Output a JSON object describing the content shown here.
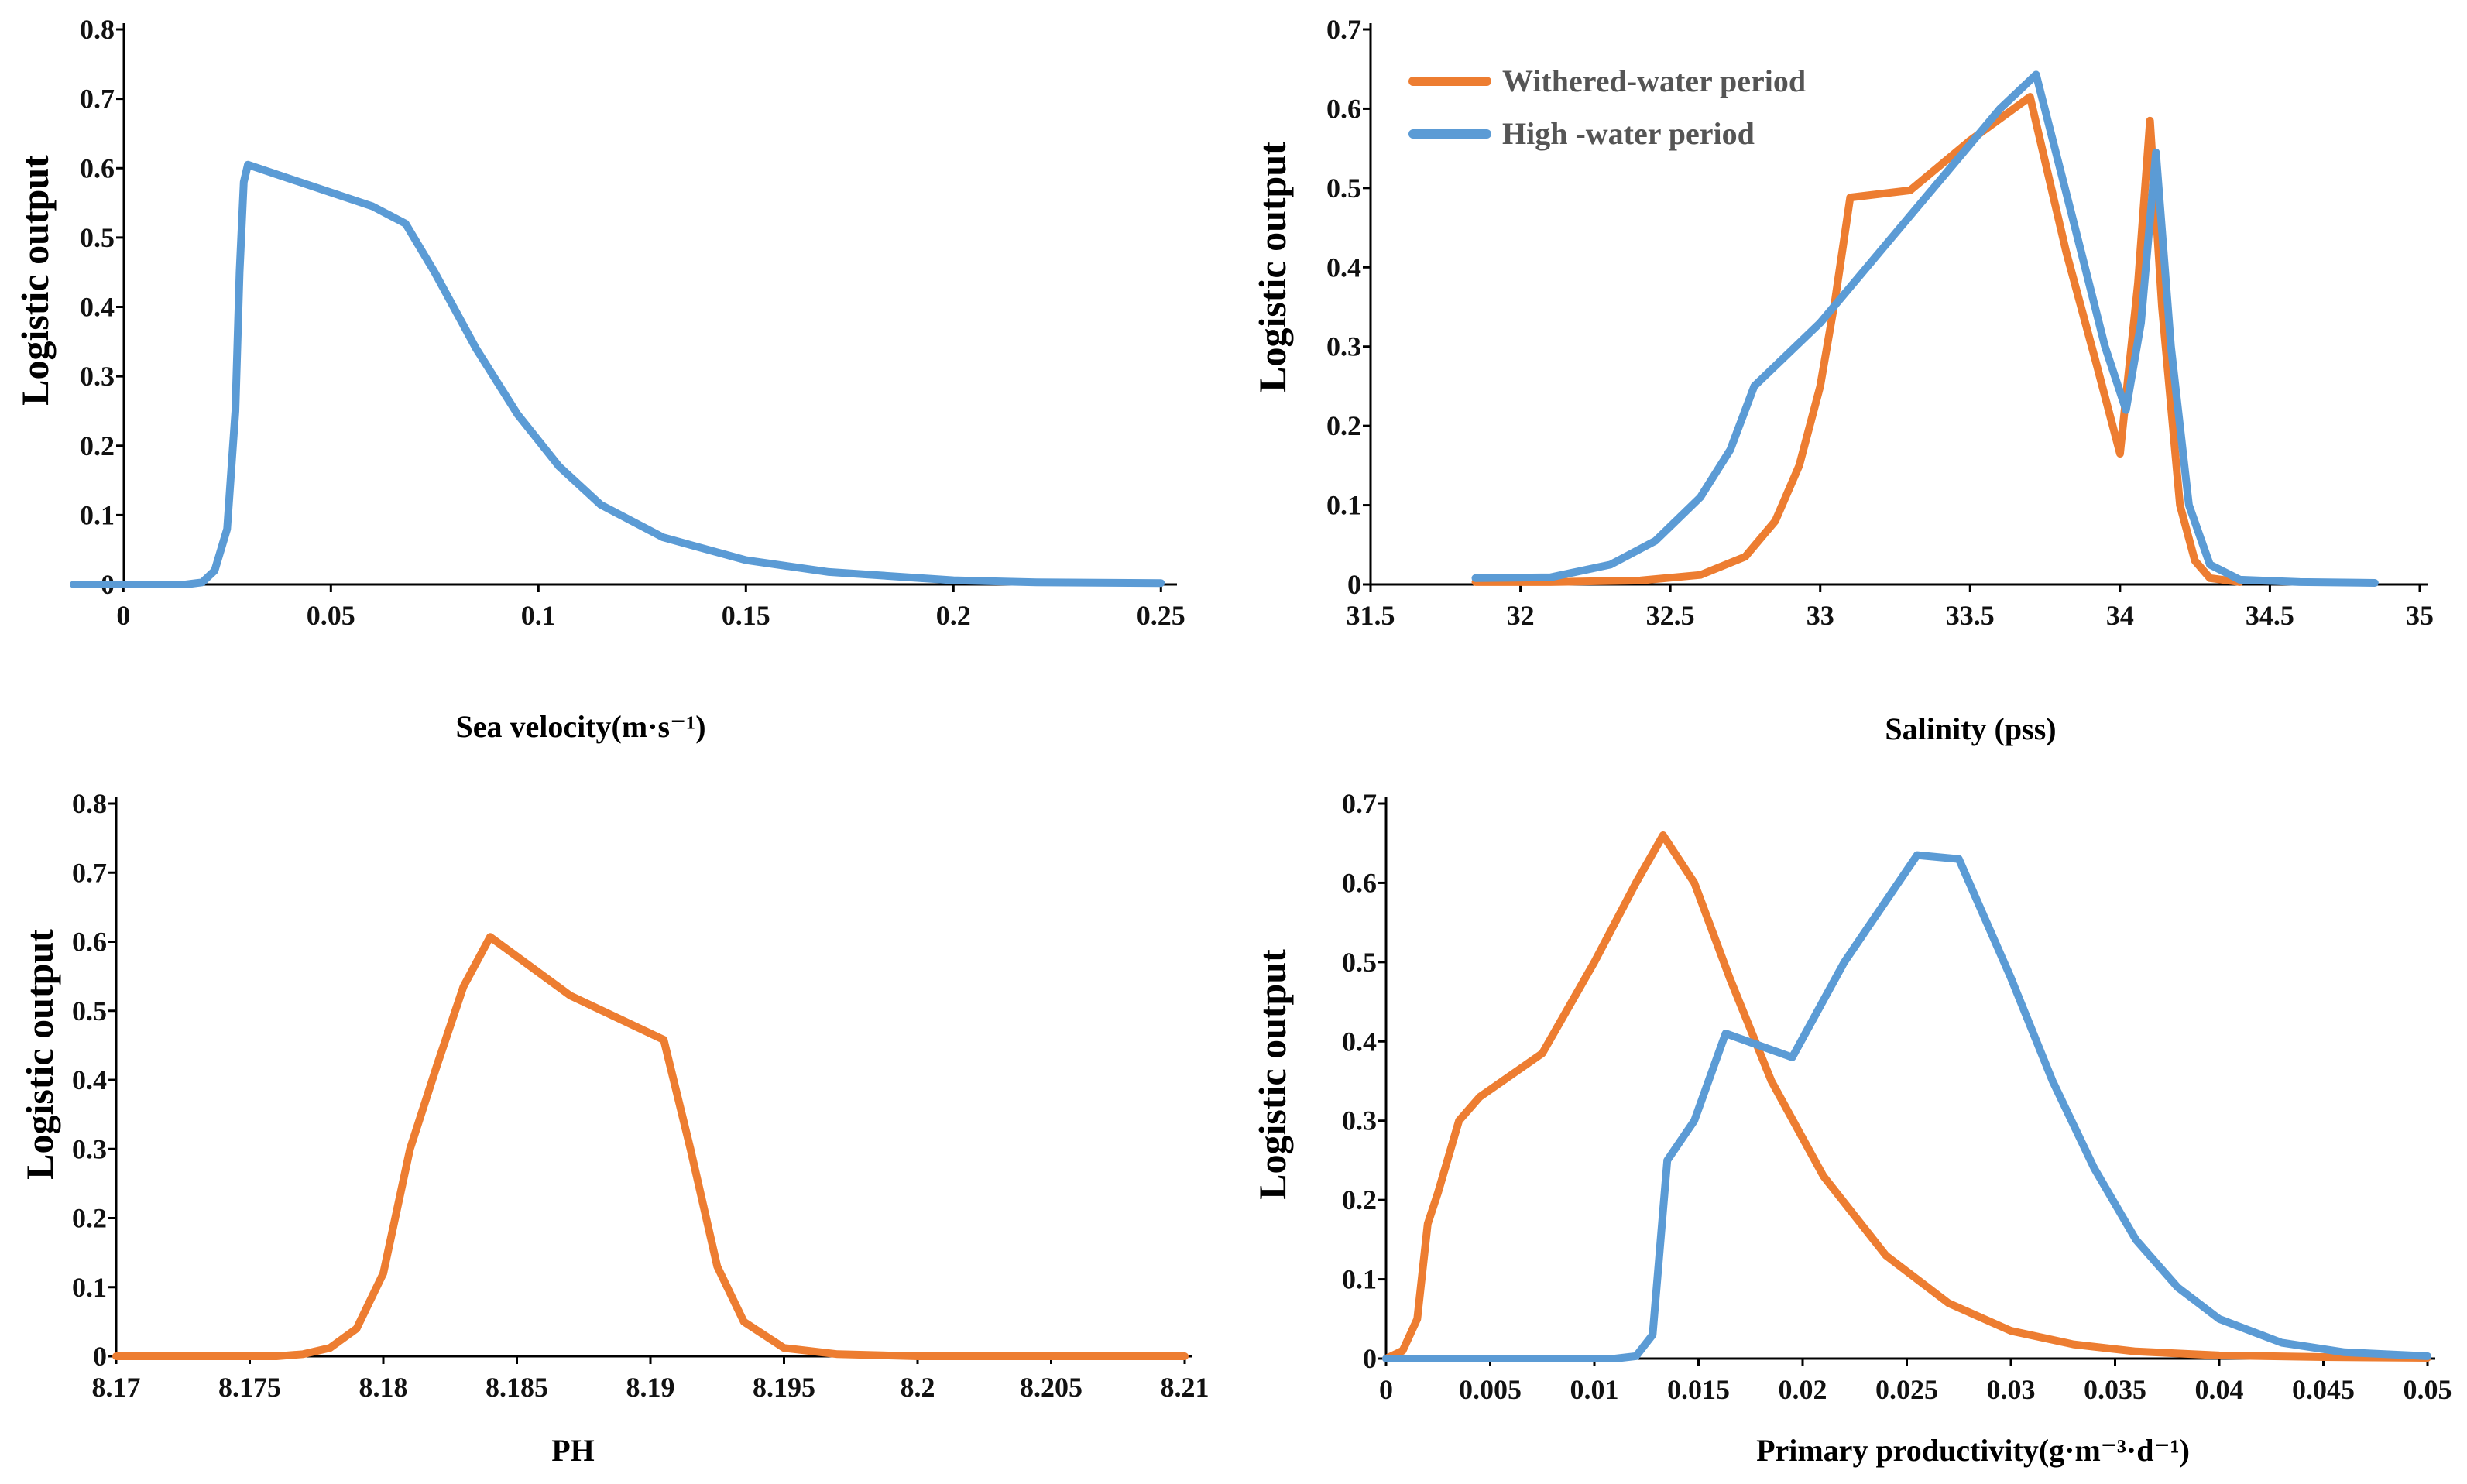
{
  "series_names": [
    "Withered-water period",
    "High -water period"
  ],
  "colors": {
    "withered": "#ED7D31",
    "high": "#5B9BD5"
  },
  "chart_data": [
    {
      "id": "panel-a",
      "type": "line",
      "title": "",
      "xlabel": "Sea velocity(m·s⁻¹)",
      "ylabel": "Logistic output",
      "xlim": [
        -0.012,
        0.252
      ],
      "ylim": [
        0,
        0.8
      ],
      "xticks": [
        0,
        0.05,
        0.1,
        0.15,
        0.2,
        0.25
      ],
      "yticks": [
        0,
        0.1,
        0.2,
        0.3,
        0.4,
        0.5,
        0.6,
        0.7,
        0.8
      ],
      "legend": null,
      "series": [
        {
          "name": "High -water period",
          "color": "#5B9BD5",
          "points": [
            [
              -0.012,
              0.0
            ],
            [
              0.0,
              0.0
            ],
            [
              0.015,
              0.0
            ],
            [
              0.019,
              0.003
            ],
            [
              0.022,
              0.02
            ],
            [
              0.025,
              0.08
            ],
            [
              0.027,
              0.25
            ],
            [
              0.028,
              0.45
            ],
            [
              0.029,
              0.58
            ],
            [
              0.03,
              0.605
            ],
            [
              0.04,
              0.585
            ],
            [
              0.05,
              0.565
            ],
            [
              0.06,
              0.545
            ],
            [
              0.068,
              0.52
            ],
            [
              0.075,
              0.45
            ],
            [
              0.085,
              0.34
            ],
            [
              0.095,
              0.245
            ],
            [
              0.105,
              0.17
            ],
            [
              0.115,
              0.115
            ],
            [
              0.13,
              0.068
            ],
            [
              0.15,
              0.035
            ],
            [
              0.17,
              0.018
            ],
            [
              0.2,
              0.006
            ],
            [
              0.22,
              0.003
            ],
            [
              0.25,
              0.002
            ]
          ]
        }
      ]
    },
    {
      "id": "panel-b",
      "type": "line",
      "title": "",
      "xlabel": "Salinity (pss)",
      "ylabel": "Logistic output",
      "xlim": [
        31.5,
        35.0
      ],
      "ylim": [
        0,
        0.7
      ],
      "xticks": [
        31.5,
        32,
        32.5,
        33,
        33.5,
        34,
        34.5,
        35
      ],
      "yticks": [
        0,
        0.1,
        0.2,
        0.3,
        0.4,
        0.5,
        0.6,
        0.7
      ],
      "legend": "top-left",
      "series": [
        {
          "name": "Withered-water period",
          "color": "#ED7D31",
          "points": [
            [
              31.85,
              0.003
            ],
            [
              32.1,
              0.003
            ],
            [
              32.4,
              0.005
            ],
            [
              32.6,
              0.012
            ],
            [
              32.75,
              0.035
            ],
            [
              32.85,
              0.08
            ],
            [
              32.93,
              0.15
            ],
            [
              33.0,
              0.25
            ],
            [
              33.05,
              0.36
            ],
            [
              33.1,
              0.488
            ],
            [
              33.3,
              0.497
            ],
            [
              33.5,
              0.56
            ],
            [
              33.7,
              0.615
            ],
            [
              33.82,
              0.42
            ],
            [
              33.92,
              0.28
            ],
            [
              34.0,
              0.165
            ],
            [
              34.06,
              0.38
            ],
            [
              34.1,
              0.585
            ],
            [
              34.14,
              0.35
            ],
            [
              34.2,
              0.1
            ],
            [
              34.25,
              0.03
            ],
            [
              34.3,
              0.008
            ],
            [
              34.4,
              0.003
            ]
          ]
        },
        {
          "name": "High -water period",
          "color": "#5B9BD5",
          "points": [
            [
              31.85,
              0.008
            ],
            [
              32.1,
              0.009
            ],
            [
              32.3,
              0.025
            ],
            [
              32.45,
              0.055
            ],
            [
              32.6,
              0.11
            ],
            [
              32.7,
              0.17
            ],
            [
              32.78,
              0.25
            ],
            [
              33.0,
              0.33
            ],
            [
              33.2,
              0.42
            ],
            [
              33.4,
              0.51
            ],
            [
              33.6,
              0.6
            ],
            [
              33.72,
              0.643
            ],
            [
              33.85,
              0.45
            ],
            [
              33.95,
              0.3
            ],
            [
              34.02,
              0.22
            ],
            [
              34.07,
              0.33
            ],
            [
              34.12,
              0.545
            ],
            [
              34.17,
              0.3
            ],
            [
              34.23,
              0.1
            ],
            [
              34.3,
              0.025
            ],
            [
              34.4,
              0.006
            ],
            [
              34.6,
              0.003
            ],
            [
              34.85,
              0.002
            ]
          ]
        }
      ]
    },
    {
      "id": "panel-c",
      "type": "line",
      "title": "",
      "xlabel": "PH",
      "ylabel": "Logistic output",
      "xlim": [
        8.17,
        8.21
      ],
      "ylim": [
        0,
        0.8
      ],
      "xticks": [
        8.17,
        8.175,
        8.18,
        8.185,
        8.19,
        8.195,
        8.2,
        8.205,
        8.21
      ],
      "yticks": [
        0,
        0.1,
        0.2,
        0.3,
        0.4,
        0.5,
        0.6,
        0.7,
        0.8
      ],
      "legend": null,
      "series": [
        {
          "name": "Withered-water period",
          "color": "#ED7D31",
          "points": [
            [
              8.17,
              0.0
            ],
            [
              8.176,
              0.0
            ],
            [
              8.177,
              0.003
            ],
            [
              8.178,
              0.012
            ],
            [
              8.179,
              0.04
            ],
            [
              8.18,
              0.12
            ],
            [
              8.181,
              0.3
            ],
            [
              8.182,
              0.42
            ],
            [
              8.183,
              0.535
            ],
            [
              8.184,
              0.607
            ],
            [
              8.187,
              0.522
            ],
            [
              8.1905,
              0.458
            ],
            [
              8.1915,
              0.3
            ],
            [
              8.1925,
              0.13
            ],
            [
              8.1935,
              0.05
            ],
            [
              8.195,
              0.012
            ],
            [
              8.197,
              0.003
            ],
            [
              8.2,
              0.0
            ],
            [
              8.21,
              0.0
            ]
          ]
        }
      ]
    },
    {
      "id": "panel-d",
      "type": "line",
      "title": "",
      "xlabel": "Primary productivity(g·m⁻³·d⁻¹)",
      "ylabel": "Logistic output",
      "xlim": [
        0,
        0.05
      ],
      "ylim": [
        0,
        0.7
      ],
      "xticks": [
        0,
        0.005,
        0.01,
        0.015,
        0.02,
        0.025,
        0.03,
        0.035,
        0.04,
        0.045,
        0.05
      ],
      "yticks": [
        0,
        0.1,
        0.2,
        0.3,
        0.4,
        0.5,
        0.6,
        0.7
      ],
      "legend": null,
      "series": [
        {
          "name": "Withered-water period",
          "color": "#ED7D31",
          "points": [
            [
              0.0,
              0.0
            ],
            [
              0.0008,
              0.01
            ],
            [
              0.0015,
              0.05
            ],
            [
              0.002,
              0.17
            ],
            [
              0.0025,
              0.21
            ],
            [
              0.0035,
              0.3
            ],
            [
              0.0045,
              0.33
            ],
            [
              0.0075,
              0.385
            ],
            [
              0.01,
              0.5
            ],
            [
              0.012,
              0.6
            ],
            [
              0.0133,
              0.66
            ],
            [
              0.0148,
              0.6
            ],
            [
              0.0165,
              0.48
            ],
            [
              0.0185,
              0.35
            ],
            [
              0.021,
              0.23
            ],
            [
              0.024,
              0.13
            ],
            [
              0.027,
              0.07
            ],
            [
              0.03,
              0.035
            ],
            [
              0.033,
              0.018
            ],
            [
              0.036,
              0.009
            ],
            [
              0.04,
              0.004
            ],
            [
              0.045,
              0.002
            ],
            [
              0.05,
              0.001
            ]
          ]
        },
        {
          "name": "High -water period",
          "color": "#5B9BD5",
          "points": [
            [
              0.0,
              0.0
            ],
            [
              0.011,
              0.0
            ],
            [
              0.012,
              0.003
            ],
            [
              0.0128,
              0.03
            ],
            [
              0.0135,
              0.25
            ],
            [
              0.0148,
              0.3
            ],
            [
              0.0163,
              0.41
            ],
            [
              0.0195,
              0.38
            ],
            [
              0.022,
              0.5
            ],
            [
              0.0255,
              0.635
            ],
            [
              0.0275,
              0.63
            ],
            [
              0.03,
              0.48
            ],
            [
              0.032,
              0.35
            ],
            [
              0.034,
              0.24
            ],
            [
              0.036,
              0.15
            ],
            [
              0.038,
              0.09
            ],
            [
              0.04,
              0.05
            ],
            [
              0.043,
              0.02
            ],
            [
              0.046,
              0.008
            ],
            [
              0.05,
              0.003
            ]
          ]
        }
      ]
    }
  ]
}
